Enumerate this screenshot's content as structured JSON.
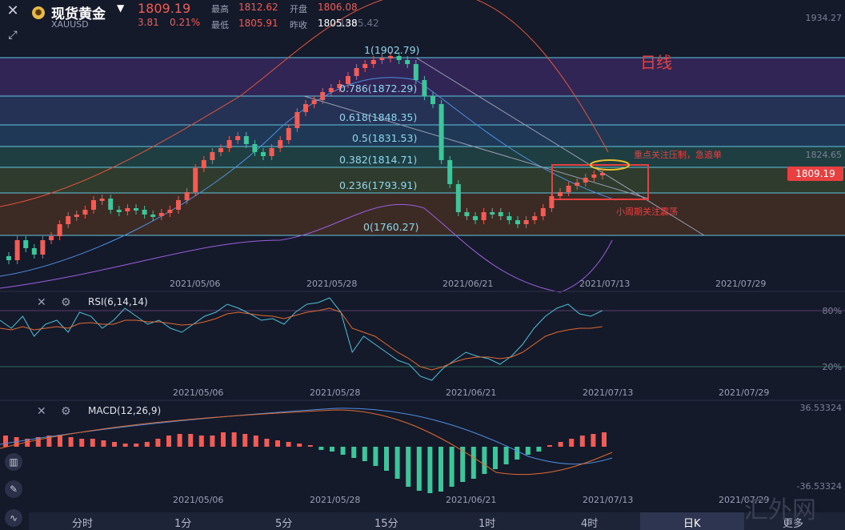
{
  "header": {
    "title": "现货黄金",
    "symbol": "XAUUSD",
    "price": "1809.19",
    "change": "3.81",
    "change_pct": "0.21%",
    "high_label": "最高",
    "high": "1812.62",
    "open_label": "开盘",
    "open": "1806.08",
    "low_label": "最低",
    "low": "1805.91",
    "prev_label": "昨收",
    "prev": "1805.38",
    "prev_ghost": "1805.42"
  },
  "main_chart": {
    "timeframe_label": "日线",
    "axis_top": "1934.27",
    "axis_mid": "1824.65",
    "price_tag": "1809.19",
    "fib_levels": [
      {
        "label": "1(1902.79)"
      },
      {
        "label": "0.786(1872.29)"
      },
      {
        "label": "0.618(1848.35)"
      },
      {
        "label": "0.5(1831.53)"
      },
      {
        "label": "0.382(1814.71)"
      },
      {
        "label": "0.236(1793.91)"
      },
      {
        "label": "0(1760.27)"
      }
    ],
    "annotation_1": "重点关注压制，急追单",
    "annotation_2": "小周期关注震荡",
    "dates": [
      "2021/05/06",
      "2021/05/28",
      "2021/06/21",
      "2021/07/13",
      "2021/07/29"
    ]
  },
  "rsi_panel": {
    "label": "RSI(6,14,14)",
    "level_80": "80%",
    "level_20": "20%",
    "dates": [
      "2021/05/06",
      "2021/05/28",
      "2021/06/21",
      "2021/07/13",
      "2021/07/29"
    ]
  },
  "macd_panel": {
    "label": "MACD(12,26,9)",
    "axis_top": "36.53324",
    "axis_bottom": "-36.53324",
    "dates": [
      "2021/05/06",
      "2021/05/28",
      "2021/06/21",
      "2021/07/13",
      "2021/07/29"
    ]
  },
  "tabs": [
    "分时",
    "1分",
    "5分",
    "15分",
    "1时",
    "4时",
    "日K",
    "更多"
  ],
  "active_tab": "日K",
  "watermark": "汇外网",
  "colors": {
    "up": "#f25c54",
    "down": "#3cc69a",
    "fib_line": "#5fc6e0",
    "background": "#151a2b"
  }
}
